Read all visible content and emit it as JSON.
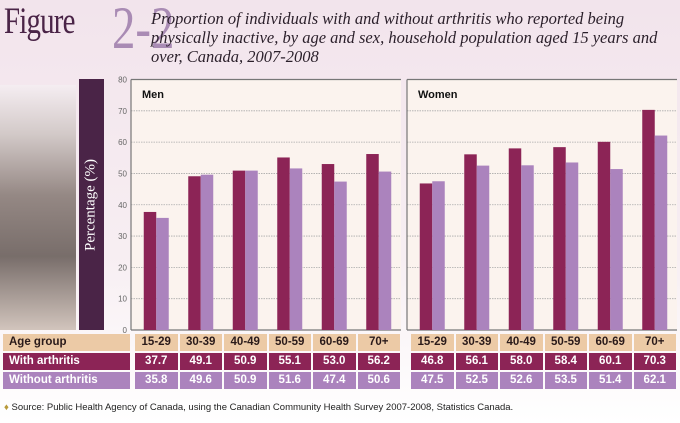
{
  "figure": {
    "word": "Figure",
    "number": "2-2"
  },
  "title": "Proportion of individuals with and without arthritis who reported being physically inactive, by age and sex, household population aged 15 years and over, Canada, 2007-2008",
  "source": "Source: Public Health Agency of Canada, using the Canadian Community Health Survey 2007-2008, Statistics Canada.",
  "colors": {
    "with_arthritis": "#8c2456",
    "without_arthritis": "#ab83bd",
    "header": "#eccaa6",
    "ylabel_bar": "#4a2447"
  },
  "table": {
    "row_labels": [
      "Age group",
      "With arthritis",
      "Without arthritis"
    ]
  },
  "chart_data": [
    {
      "type": "bar",
      "title": "Men",
      "ylabel": "Percentage (%)",
      "ylim": [
        0,
        80
      ],
      "yticks": [
        0,
        10,
        20,
        30,
        40,
        50,
        60,
        70,
        80
      ],
      "grid": true,
      "categories": [
        "15-29",
        "30-39",
        "40-49",
        "50-59",
        "60-69",
        "70+"
      ],
      "series": [
        {
          "name": "With arthritis",
          "values": [
            37.7,
            49.1,
            50.9,
            55.1,
            53.0,
            56.2
          ]
        },
        {
          "name": "Without arthritis",
          "values": [
            35.8,
            49.6,
            50.9,
            51.6,
            47.4,
            50.6
          ]
        }
      ]
    },
    {
      "type": "bar",
      "title": "Women",
      "ylabel": "Percentage (%)",
      "ylim": [
        0,
        80
      ],
      "yticks": [
        0,
        10,
        20,
        30,
        40,
        50,
        60,
        70,
        80
      ],
      "grid": true,
      "categories": [
        "15-29",
        "30-39",
        "40-49",
        "50-59",
        "60-69",
        "70+"
      ],
      "series": [
        {
          "name": "With arthritis",
          "values": [
            46.8,
            56.1,
            58.0,
            58.4,
            60.1,
            70.3
          ]
        },
        {
          "name": "Without arthritis",
          "values": [
            47.5,
            52.5,
            52.6,
            53.5,
            51.4,
            62.1
          ]
        }
      ]
    }
  ]
}
